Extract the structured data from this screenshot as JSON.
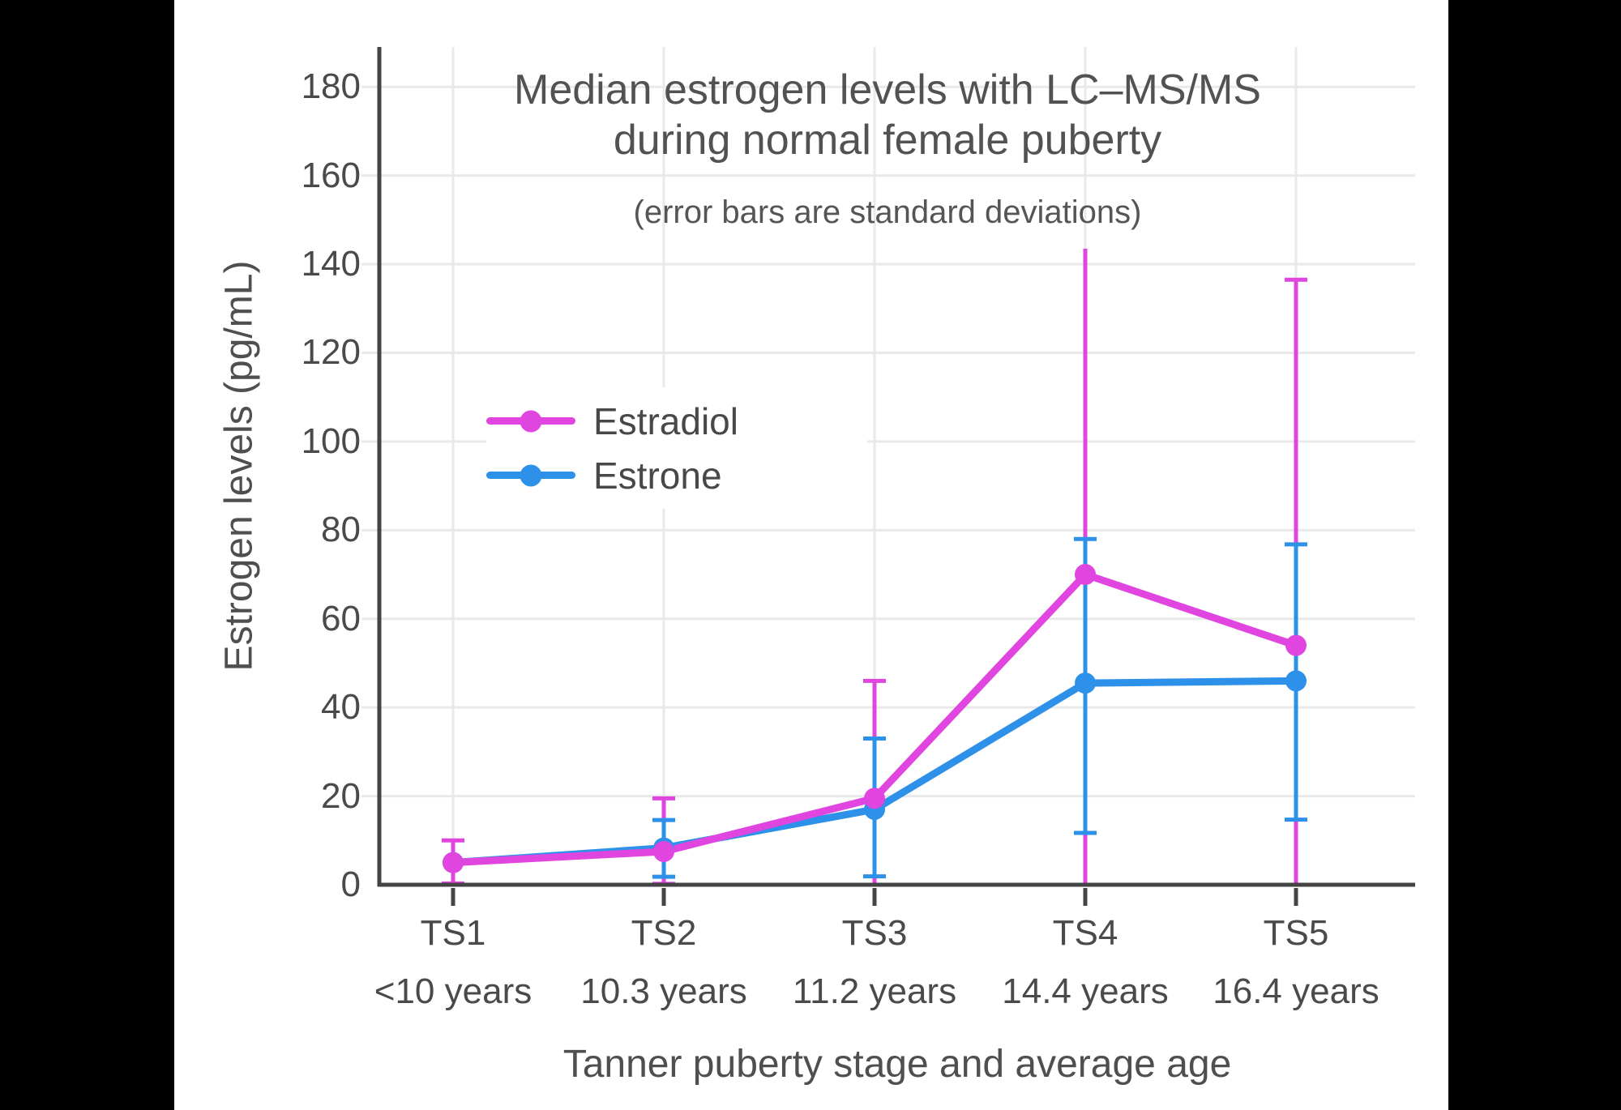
{
  "page": {
    "background": "#000000",
    "canvas_background": "#ffffff",
    "text_color": "#4a4a4a",
    "axis_color": "#444444",
    "grid_color": "#e9e9e9"
  },
  "chart_data": {
    "type": "line",
    "title_line1": "Median estrogen levels with LC–MS/MS",
    "title_line2": "during normal female puberty",
    "subtitle": "(error bars are standard deviations)",
    "xlabel": "Tanner puberty stage and average age",
    "ylabel": "Estrogen levels (pg/mL)",
    "categories": [
      "TS1",
      "TS2",
      "TS3",
      "TS4",
      "TS5"
    ],
    "category_ages": [
      "<10 years",
      "10.3 years",
      "11.2 years",
      "14.4 years",
      "16.4 years"
    ],
    "y_ticks": [
      0,
      20,
      40,
      60,
      80,
      100,
      120,
      140,
      160,
      180
    ],
    "ylim": [
      0,
      189
    ],
    "grid": true,
    "legend_position": "inside-upper-left",
    "error_bar_meaning": "standard deviations",
    "series": [
      {
        "name": "Estradiol",
        "color": "#e145e0",
        "values": [
          5,
          7.5,
          19.5,
          70,
          54
        ],
        "error_lo": [
          0.3,
          0.2,
          0,
          0,
          0
        ],
        "error_hi": [
          10,
          19.5,
          46,
          143.5,
          136.5
        ],
        "cap_lo": [
          true,
          true,
          false,
          false,
          false
        ],
        "cap_hi": [
          true,
          true,
          true,
          false,
          true
        ]
      },
      {
        "name": "Estrone",
        "color": "#2d91e9",
        "values": [
          5,
          8.3,
          17,
          45.5,
          46
        ],
        "error_lo": [
          null,
          1.8,
          1.9,
          11.7,
          14.7
        ],
        "error_hi": [
          null,
          14.6,
          33,
          78,
          76.8
        ],
        "cap_lo": [
          false,
          true,
          true,
          true,
          true
        ],
        "cap_hi": [
          false,
          true,
          true,
          true,
          true
        ]
      }
    ]
  }
}
